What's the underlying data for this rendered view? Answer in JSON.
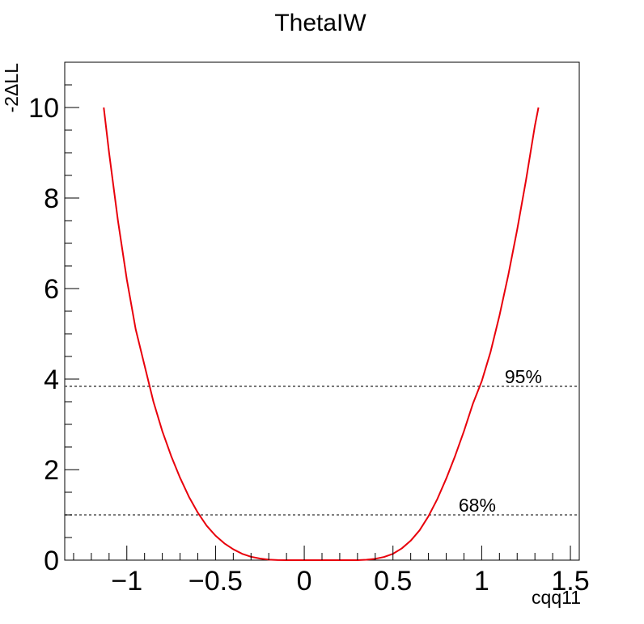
{
  "chart_data": {
    "type": "line",
    "title": "ThetaIW",
    "xlabel": "cqq11",
    "ylabel": "-2ΔLL",
    "xlim": [
      -1.35,
      1.55
    ],
    "ylim": [
      0,
      11
    ],
    "xticks": [
      {
        "value": -1.0,
        "label": "−1"
      },
      {
        "value": -0.5,
        "label": "−0.5"
      },
      {
        "value": 0.0,
        "label": "0"
      },
      {
        "value": 0.5,
        "label": "0.5"
      },
      {
        "value": 1.0,
        "label": "1"
      },
      {
        "value": 1.5,
        "label": "1.5"
      }
    ],
    "yticks": [
      {
        "value": 0,
        "label": "0"
      },
      {
        "value": 2,
        "label": "2"
      },
      {
        "value": 4,
        "label": "4"
      },
      {
        "value": 6,
        "label": "6"
      },
      {
        "value": 8,
        "label": "8"
      },
      {
        "value": 10,
        "label": "10"
      }
    ],
    "grid": false,
    "series": [
      {
        "color": "#e8000b",
        "x": [
          -1.13,
          -1.1,
          -1.05,
          -1.0,
          -0.95,
          -0.9,
          -0.85,
          -0.8,
          -0.75,
          -0.7,
          -0.65,
          -0.6,
          -0.55,
          -0.5,
          -0.45,
          -0.4,
          -0.35,
          -0.3,
          -0.25,
          -0.2,
          -0.15,
          -0.1,
          -0.05,
          0.0,
          0.05,
          0.1,
          0.15,
          0.2,
          0.25,
          0.3,
          0.35,
          0.4,
          0.45,
          0.5,
          0.55,
          0.6,
          0.65,
          0.7,
          0.75,
          0.8,
          0.85,
          0.9,
          0.95,
          1.0,
          1.05,
          1.1,
          1.15,
          1.2,
          1.25,
          1.3,
          1.32
        ],
        "y": [
          10.0,
          9.0,
          7.5,
          6.2,
          5.1,
          4.3,
          3.5,
          2.85,
          2.3,
          1.82,
          1.4,
          1.05,
          0.76,
          0.54,
          0.37,
          0.24,
          0.14,
          0.075,
          0.035,
          0.012,
          0.003,
          0.0,
          0.0,
          0.0,
          0.0,
          0.0,
          0.0,
          0.0,
          0.0,
          0.001,
          0.008,
          0.03,
          0.07,
          0.14,
          0.26,
          0.43,
          0.66,
          0.97,
          1.35,
          1.8,
          2.3,
          2.85,
          3.45,
          3.95,
          4.6,
          5.4,
          6.3,
          7.3,
          8.4,
          9.6,
          10.0
        ]
      }
    ],
    "reference_lines": [
      {
        "y": 1.0,
        "label": "68%",
        "label_x": 0.87,
        "color": "#555555"
      },
      {
        "y": 3.84,
        "label": "95%",
        "label_x": 1.13,
        "color": "#555555"
      }
    ]
  }
}
